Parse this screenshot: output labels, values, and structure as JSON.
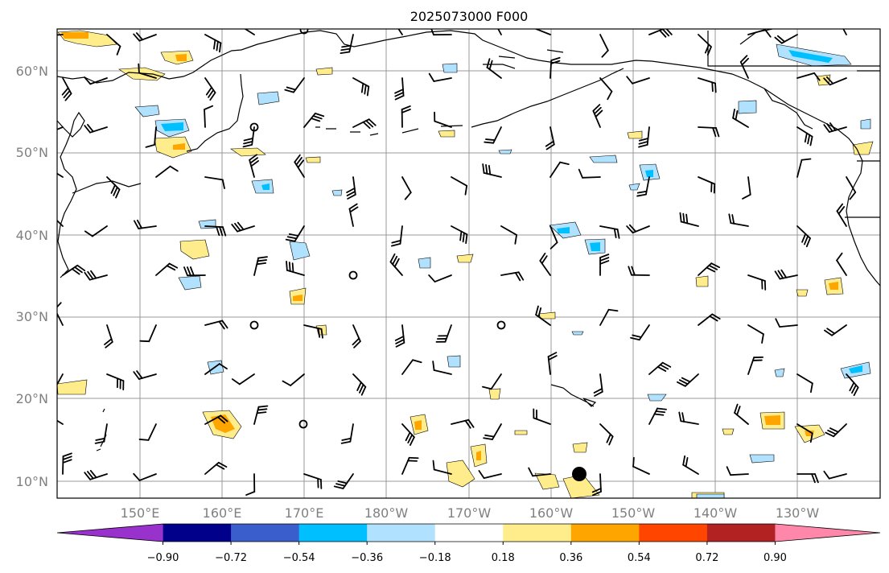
{
  "title": "2025073000 F000",
  "lat_labels": [
    "60°N",
    "50°N",
    "40°N",
    "30°N",
    "20°N",
    "10°N"
  ],
  "lon_labels": [
    "150°E",
    "160°E",
    "170°E",
    "180°W",
    "170°W",
    "160°W",
    "150°W",
    "140°W",
    "130°W"
  ],
  "colorbar": {
    "ticks": [
      "−0.90",
      "−0.72",
      "−0.54",
      "−0.36",
      "−0.18",
      "0.18",
      "0.36",
      "0.54",
      "0.72",
      "0.90"
    ],
    "colors": [
      "#9932cc",
      "#00008b",
      "#3a5fcd",
      "#00bfff",
      "#b0e2ff",
      "#ffffff",
      "#ffec8b",
      "#ffa500",
      "#ff4500",
      "#b22222",
      "#ff88aa"
    ]
  },
  "colors": {
    "land": "#000000",
    "grid": "#999999",
    "barb": "#000000",
    "pos_low": "#ffec8b",
    "pos_mid": "#ffa500",
    "neg_low": "#b0e2ff",
    "neg_mid": "#00bfff"
  },
  "map": {
    "lon_range": [
      140,
      240
    ],
    "lat_range": [
      8,
      65
    ],
    "gridlines": true,
    "marker_hawaii": true
  }
}
